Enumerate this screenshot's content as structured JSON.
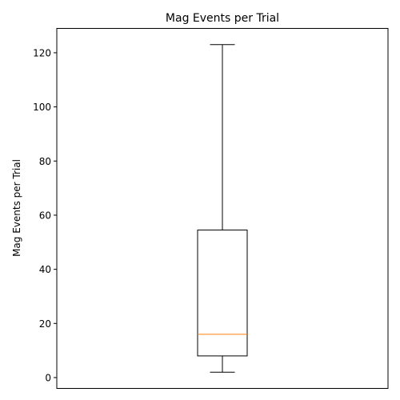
{
  "chart_data": {
    "type": "box",
    "title": "Mag Events per Trial",
    "xlabel": "",
    "ylabel": "Mag Events per Trial",
    "ylim": [
      -4,
      129
    ],
    "yticks": [
      0,
      20,
      40,
      60,
      80,
      100,
      120
    ],
    "grid": false,
    "series": [
      {
        "whisker_low": 2,
        "q1": 8,
        "median": 16,
        "q3": 54.5,
        "whisker_high": 123
      }
    ],
    "colors": {
      "box": "#000000",
      "median": "#ff7f0e",
      "axes": "#000000"
    }
  }
}
